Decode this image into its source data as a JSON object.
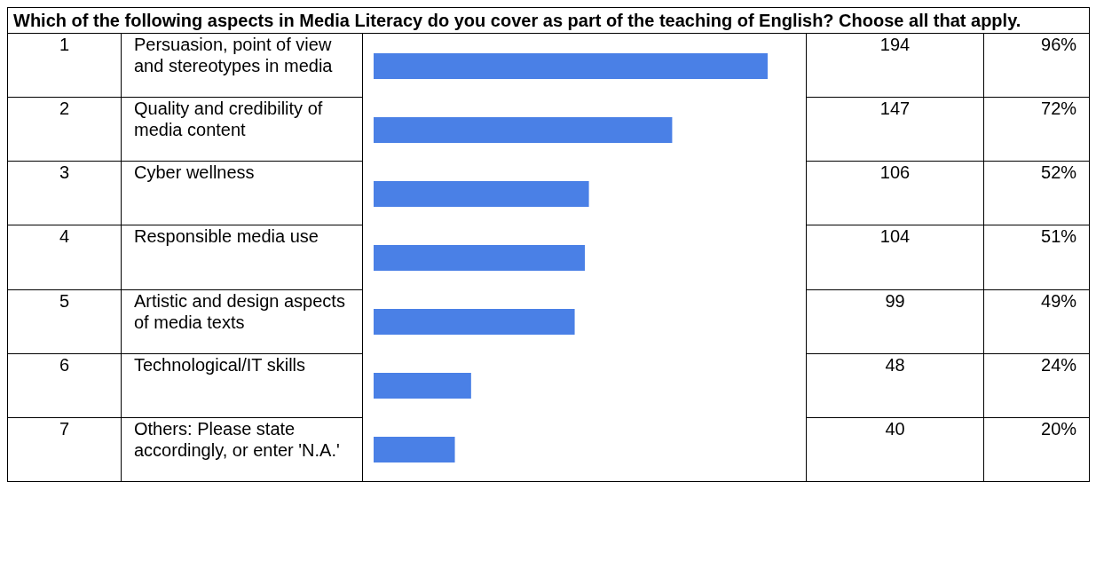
{
  "chart_data": {
    "type": "bar",
    "orientation": "horizontal",
    "title": "Which of the following aspects in Media Literacy do you cover as part of the teaching of English? Choose all that apply.",
    "categories": [
      "Persuasion, point of view and stereotypes in media",
      "Quality and credibility of media content",
      "Cyber wellness",
      "Responsible media use",
      "Artistic and design aspects of media texts",
      "Technological/IT skills",
      "Others: Please state accordingly, or enter 'N.A.'"
    ],
    "values": [
      194,
      147,
      106,
      104,
      99,
      48,
      40
    ],
    "color": "#4a80e6",
    "data_labels": true,
    "annotations": [
      "1",
      "2",
      "3",
      "4",
      "5",
      "6",
      "7",
      "96%",
      "72%",
      "52%",
      "51%",
      "49%",
      "24%",
      "20%"
    ]
  }
}
